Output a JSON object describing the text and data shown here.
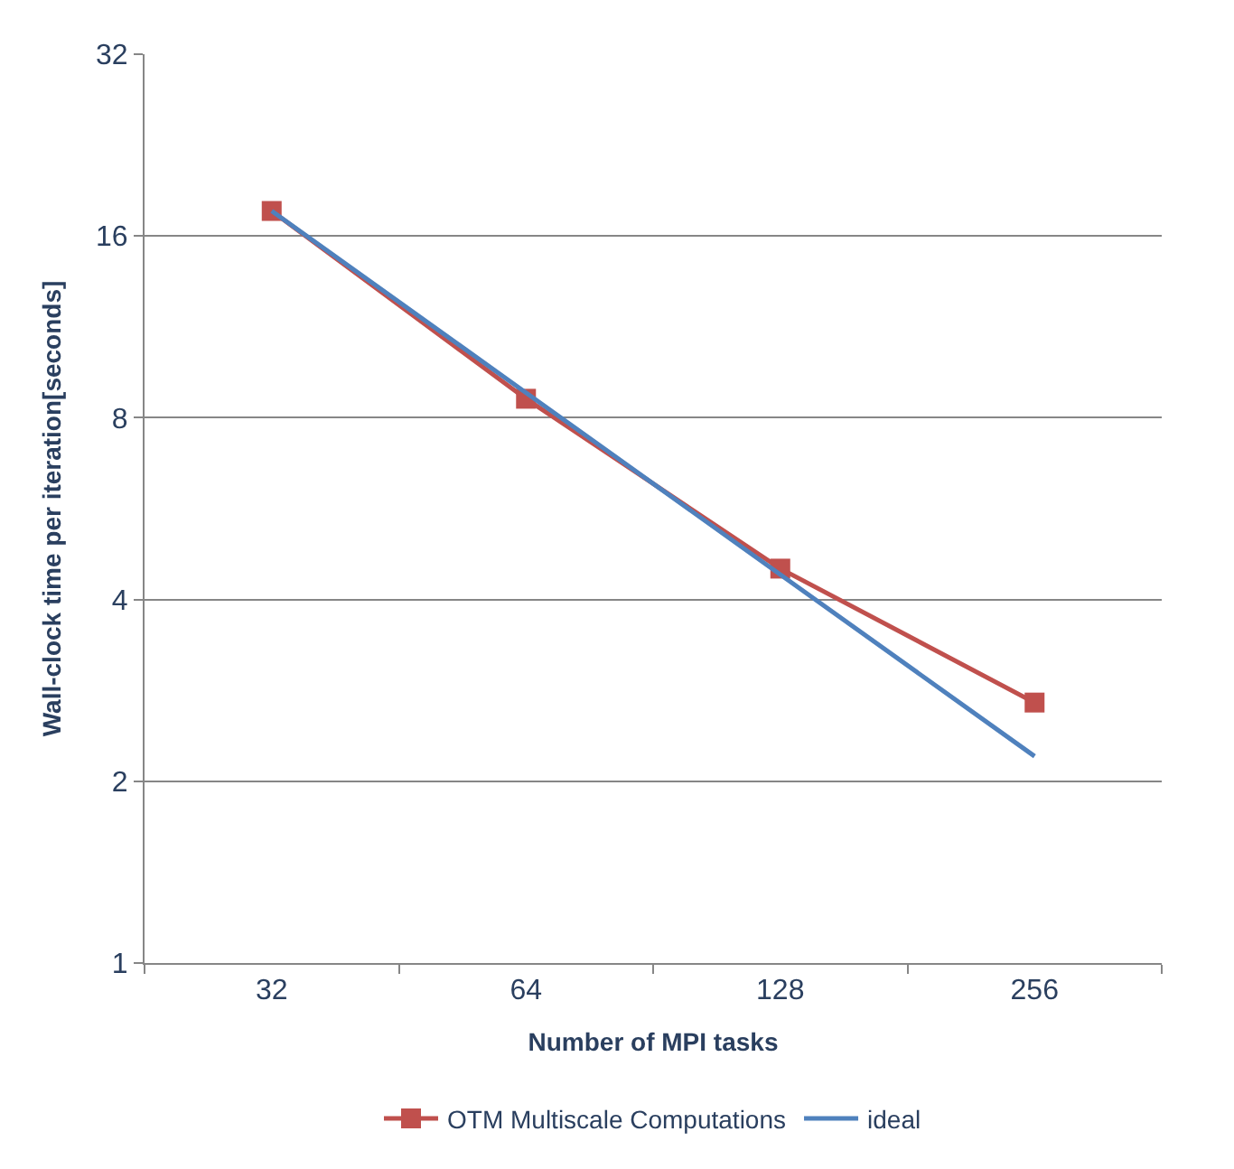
{
  "chart_data": {
    "type": "line",
    "categories": [
      "32",
      "64",
      "128",
      "256"
    ],
    "xlabel": "Number of MPI tasks",
    "ylabel": "Wall-clock time per iteration[seconds]",
    "series": [
      {
        "name": "OTM Multiscale Computations",
        "color": "#c0504d",
        "values": [
          17.6,
          8.6,
          4.5,
          2.7
        ],
        "marker": "square"
      },
      {
        "name": "ideal",
        "color": "#4f81bd",
        "values": [
          17.6,
          8.8,
          4.4,
          2.2
        ],
        "marker": "none"
      }
    ],
    "log": "y",
    "ylim": [
      1,
      32
    ],
    "yticks": [
      1,
      2,
      4,
      8,
      16,
      32
    ],
    "grid": "y",
    "legend": "bottom",
    "line_style": "solid"
  }
}
